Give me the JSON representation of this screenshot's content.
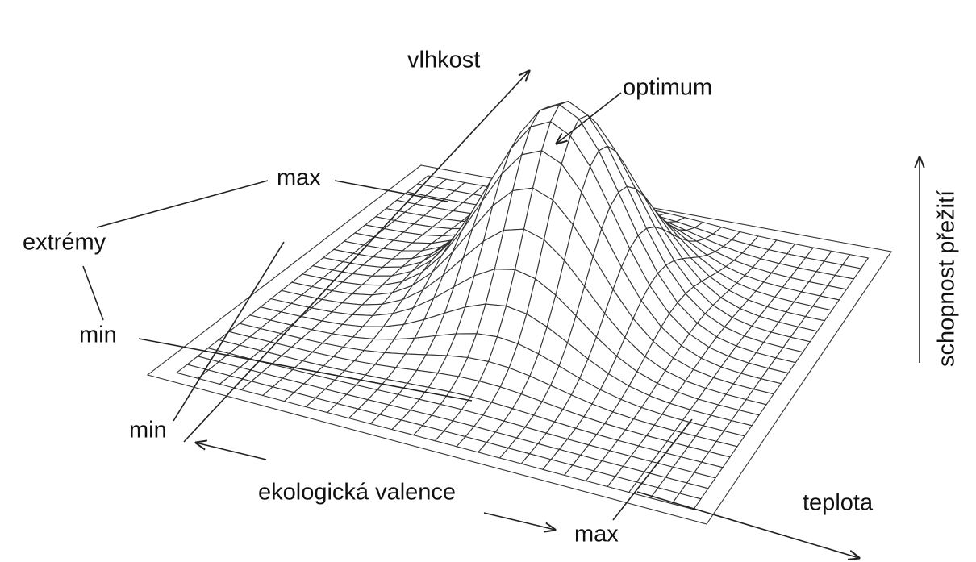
{
  "labels": {
    "humidity_axis": "vlhkost",
    "optimum": "optimum",
    "max_upper": "max",
    "extremes": "extrémy",
    "min_left": "min",
    "min_lower": "min",
    "ecological_valence": "ekologická valence",
    "max_lower": "max",
    "temperature_axis": "teplota",
    "survival": "schopnost přežití"
  }
}
